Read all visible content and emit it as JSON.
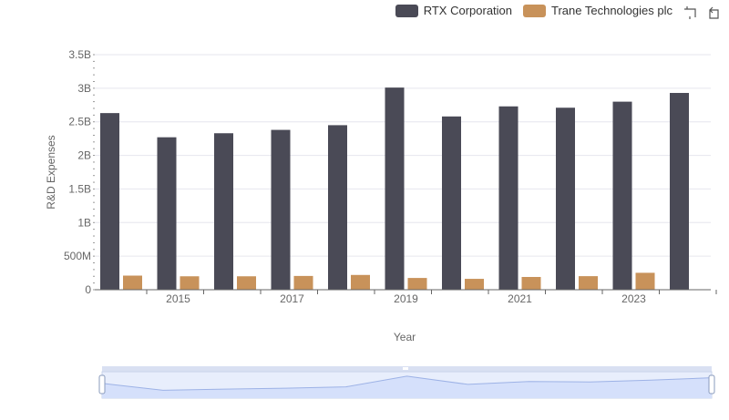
{
  "chart_data": {
    "type": "bar",
    "xlabel": "Year",
    "ylabel": "R&D Expenses",
    "ylim": [
      0,
      3500000000
    ],
    "y_ticks": [
      "0",
      "500M",
      "1B",
      "1.5B",
      "2B",
      "2.5B",
      "3B",
      "3.5B"
    ],
    "x_tick_labels": [
      "2015",
      "2017",
      "2019",
      "2021",
      "2023"
    ],
    "categories": [
      "2014",
      "2015",
      "2016",
      "2017",
      "2018",
      "2019",
      "2020",
      "2021",
      "2022",
      "2023",
      "2024"
    ],
    "series": [
      {
        "name": "RTX Corporation",
        "color": "#4a4a56",
        "values": [
          2630000000,
          2270000000,
          2330000000,
          2380000000,
          2450000000,
          3010000000,
          2580000000,
          2730000000,
          2710000000,
          2800000000,
          2930000000
        ]
      },
      {
        "name": "Trane Technologies plc",
        "color": "#c8925a",
        "values": [
          210000000,
          200000000,
          200000000,
          205000000,
          220000000,
          175000000,
          162000000,
          190000000,
          202000000,
          252000000,
          null
        ]
      }
    ],
    "grid": true,
    "legend_position": "top-right"
  },
  "toolbox": {
    "zoom_icon": "zoom-select-icon",
    "reset_icon": "zoom-reset-icon"
  }
}
